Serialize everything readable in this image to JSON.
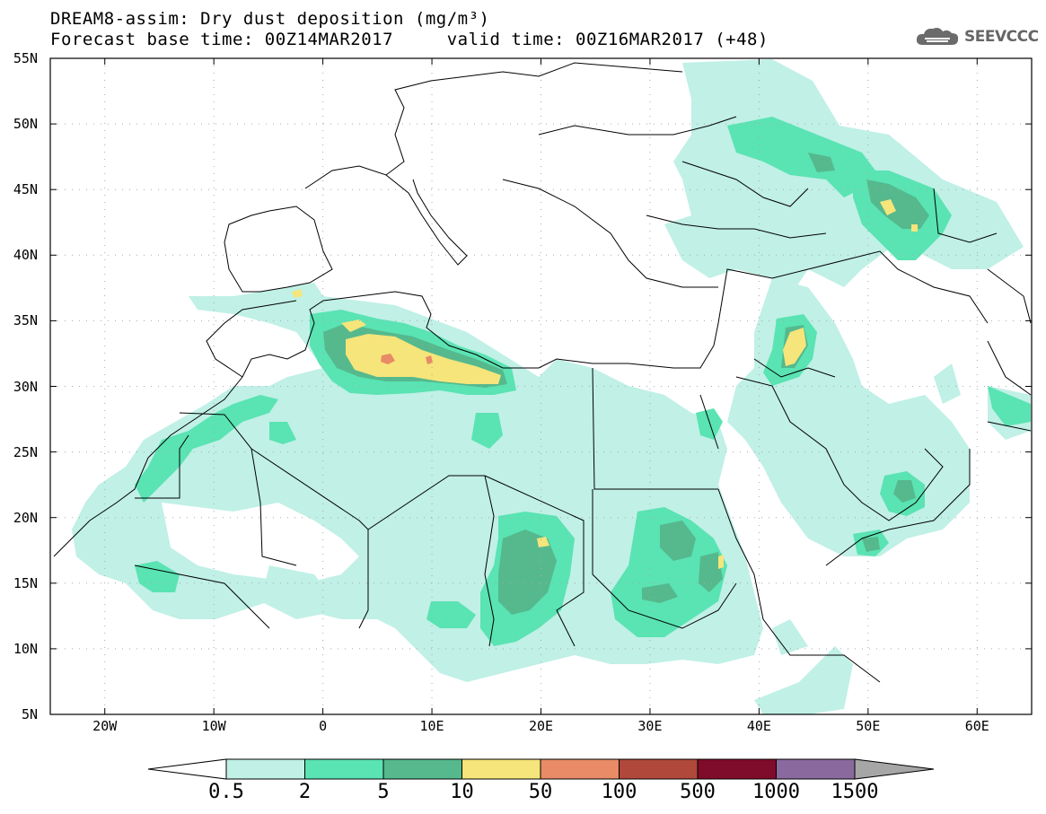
{
  "title": {
    "line1": "DREAM8-assim: Dry dust deposition (mg/m³)",
    "line2": "Forecast base time: 00Z14MAR2017     valid time: 00Z16MAR2017 (+48)"
  },
  "logo": {
    "text": "SEEVCCC",
    "icon": "cloud-icon"
  },
  "axes": {
    "lat_labels": [
      "55N",
      "50N",
      "45N",
      "40N",
      "35N",
      "30N",
      "25N",
      "20N",
      "15N",
      "10N",
      "5N"
    ],
    "lon_labels": [
      "20W",
      "10W",
      "0",
      "10E",
      "20E",
      "30E",
      "40E",
      "50E",
      "60E"
    ],
    "lat_range": [
      5,
      55
    ],
    "lon_range": [
      -25,
      65
    ],
    "grid": "dotted"
  },
  "colorbar": {
    "labels": [
      "0.5",
      "2",
      "5",
      "10",
      "50",
      "100",
      "500",
      "1000",
      "1500"
    ],
    "colors": [
      "#c0f0e6",
      "#5ae3b3",
      "#55b98d",
      "#f5e57a",
      "#e88b66",
      "#b0483c",
      "#7f0c2a",
      "#8a6a9e"
    ],
    "under_color": "#ffffff",
    "over_color": "#a6a6a6"
  },
  "colors": {
    "c1": "#c0f0e6",
    "c2": "#5ae3b3",
    "c3": "#55b98d",
    "c4": "#f5e57a",
    "c5": "#e88b66"
  }
}
